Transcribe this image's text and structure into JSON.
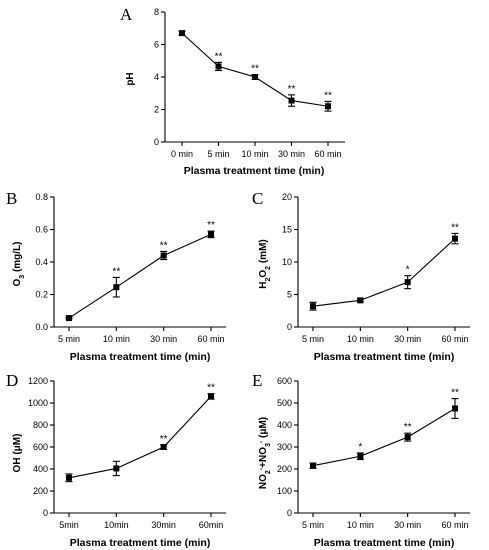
{
  "chart_data": [
    {
      "panel": "A",
      "type": "line",
      "categories": [
        "0 min",
        "5 min",
        "10 min",
        "30 min",
        "60 min"
      ],
      "values": [
        6.7,
        4.65,
        4.0,
        2.55,
        2.2
      ],
      "errors": [
        0.12,
        0.25,
        0.15,
        0.35,
        0.3
      ],
      "significance": [
        "",
        "**",
        "**",
        "**",
        "**"
      ],
      "ylabel": "pH",
      "xlabel": "Plasma treatment time (min)",
      "ylim": [
        0,
        8
      ],
      "yticks": [
        "0",
        "2",
        "4",
        "6",
        "8"
      ],
      "grid": false
    },
    {
      "panel": "B",
      "type": "line",
      "categories": [
        "5 min",
        "10 min",
        "30 min",
        "60 min"
      ],
      "values": [
        0.055,
        0.245,
        0.44,
        0.57
      ],
      "errors": [
        0.005,
        0.06,
        0.025,
        0.02
      ],
      "significance": [
        "",
        "**",
        "**",
        "**"
      ],
      "ylabel": "O3 (mg/L)",
      "xlabel": "Plasma treatment time (min)",
      "ylim": [
        0,
        0.8
      ],
      "yticks": [
        "0.0",
        "0.2",
        "0.4",
        "0.6",
        "0.8"
      ],
      "grid": false
    },
    {
      "panel": "C",
      "type": "line",
      "categories": [
        "5 min",
        "10 min",
        "30 min",
        "60 min"
      ],
      "values": [
        3.2,
        4.1,
        6.9,
        13.6
      ],
      "errors": [
        0.6,
        0.25,
        1.0,
        0.8
      ],
      "significance": [
        "",
        "",
        "*",
        "**"
      ],
      "ylabel": "H2O2 (mM)",
      "xlabel": "Plasma treatment time (min)",
      "ylim": [
        0,
        20
      ],
      "yticks": [
        "0",
        "5",
        "10",
        "15",
        "20"
      ],
      "grid": false
    },
    {
      "panel": "D",
      "type": "line",
      "categories": [
        "5min",
        "10min",
        "30min",
        "60min"
      ],
      "values": [
        320,
        405,
        600,
        1060
      ],
      "errors": [
        35,
        65,
        20,
        25
      ],
      "significance": [
        "",
        "",
        "**",
        "**"
      ],
      "ylabel": "OH (μM)",
      "xlabel": "Plasma treatment time (min)",
      "ylim": [
        0,
        1200
      ],
      "yticks": [
        "0",
        "200",
        "400",
        "600",
        "800",
        "1000",
        "1200"
      ],
      "grid": false
    },
    {
      "panel": "E",
      "type": "line",
      "categories": [
        "5 min",
        "10 min",
        "30 min",
        "60 min"
      ],
      "values": [
        215,
        258,
        345,
        475
      ],
      "errors": [
        12,
        15,
        18,
        45
      ],
      "significance": [
        "",
        "*",
        "**",
        "**"
      ],
      "ylabel": "NO2-+NO3- (μM)",
      "xlabel": "Plasma treatment time (min)",
      "ylim": [
        0,
        600
      ],
      "yticks": [
        "0",
        "100",
        "200",
        "300",
        "400",
        "500",
        "600"
      ],
      "grid": false
    }
  ]
}
